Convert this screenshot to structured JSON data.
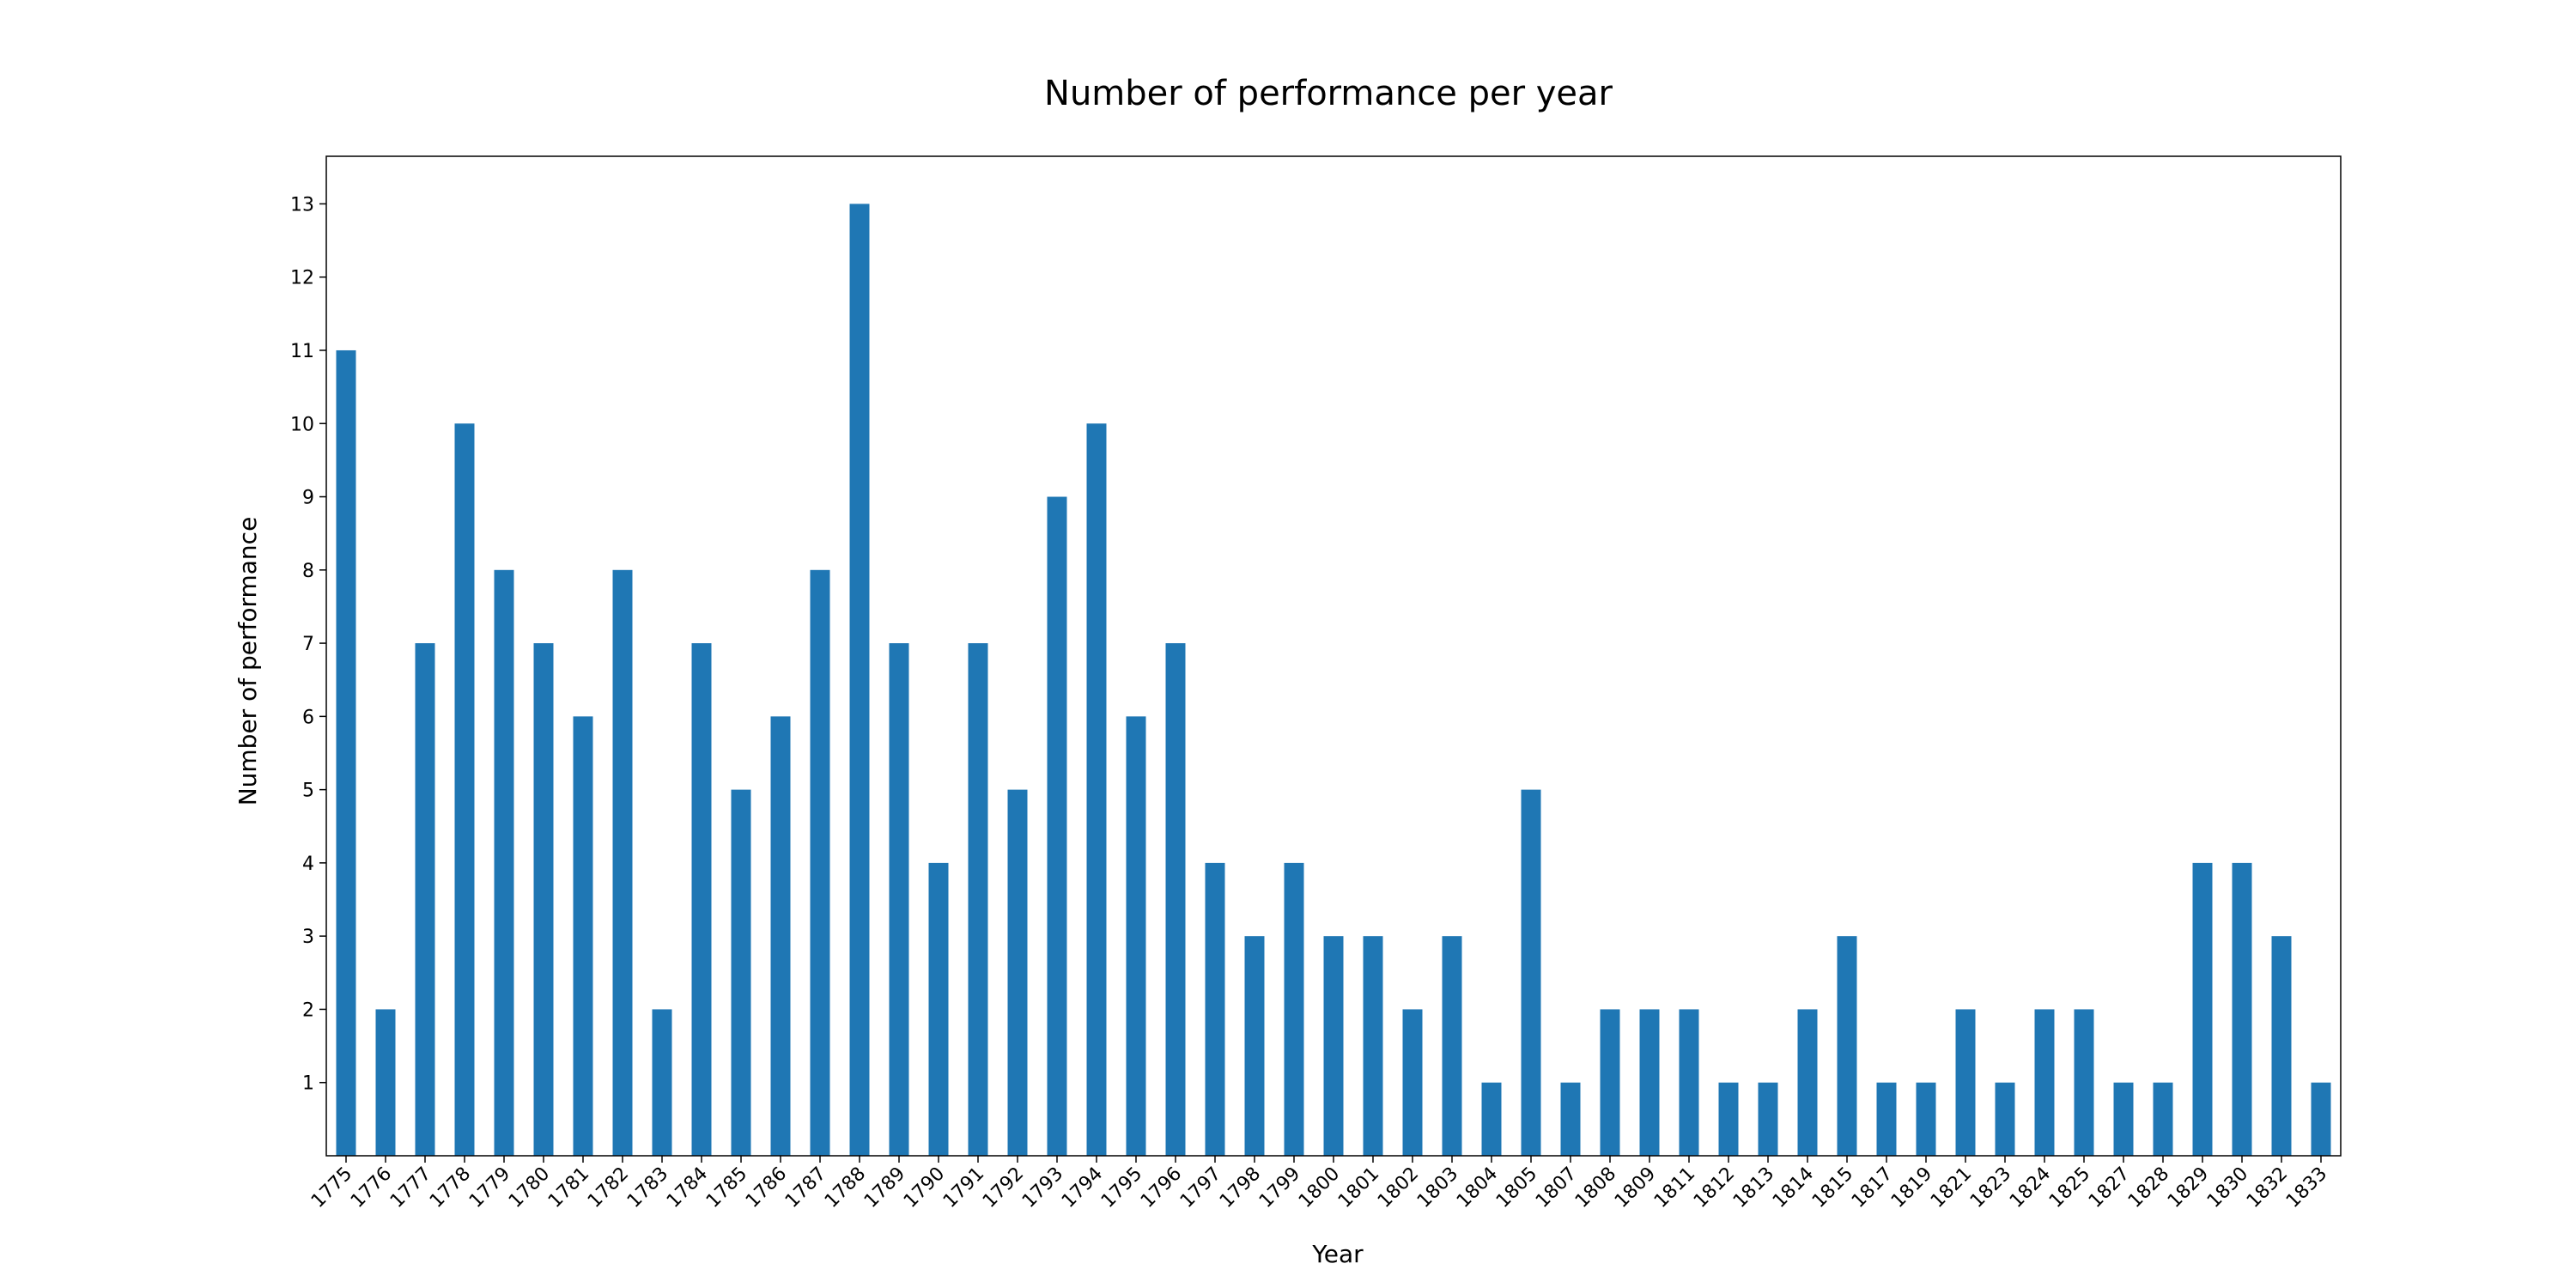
{
  "chart_data": {
    "type": "bar",
    "title": "Number of performance per year",
    "xlabel": "Year",
    "ylabel": "Number of performance",
    "categories": [
      "1775",
      "1776",
      "1777",
      "1778",
      "1779",
      "1780",
      "1781",
      "1782",
      "1783",
      "1784",
      "1785",
      "1786",
      "1787",
      "1788",
      "1789",
      "1790",
      "1791",
      "1792",
      "1793",
      "1794",
      "1795",
      "1796",
      "1797",
      "1798",
      "1799",
      "1800",
      "1801",
      "1802",
      "1803",
      "1804",
      "1805",
      "1807",
      "1808",
      "1809",
      "1811",
      "1812",
      "1813",
      "1814",
      "1815",
      "1817",
      "1819",
      "1821",
      "1823",
      "1824",
      "1825",
      "1827",
      "1828",
      "1829",
      "1830",
      "1832",
      "1833"
    ],
    "values": [
      11,
      2,
      7,
      10,
      8,
      7,
      6,
      8,
      2,
      7,
      5,
      6,
      8,
      13,
      7,
      4,
      7,
      5,
      9,
      10,
      6,
      7,
      4,
      3,
      4,
      3,
      3,
      2,
      3,
      1,
      5,
      1,
      2,
      2,
      2,
      1,
      1,
      2,
      3,
      1,
      1,
      2,
      1,
      2,
      2,
      1,
      1,
      4,
      4,
      3,
      1
    ],
    "yticks": [
      1,
      2,
      3,
      4,
      5,
      6,
      7,
      8,
      9,
      10,
      11,
      12,
      13
    ],
    "ylim": [
      0,
      13.65
    ],
    "bar_color": "#1f77b4",
    "grid": false,
    "legend": "none"
  }
}
